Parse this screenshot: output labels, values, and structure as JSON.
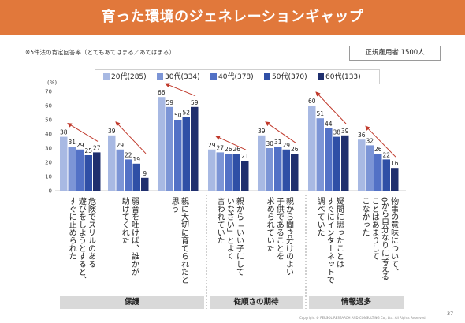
{
  "title": "育った環境のジェネレーションギャップ",
  "note": "※5件法の肯定回答率（とてもあてはまる／あてはまる）",
  "sample_box": "正規雇用者  1500人",
  "copyright": "Copyright © PERSOL RESEARCH AND CONSULTING Co., Ltd. All Rights Reserved.",
  "page_number": "37",
  "chart_data": {
    "type": "bar",
    "ylabel": "(%)",
    "ylim": [
      0,
      70
    ],
    "yticks": [
      0,
      10,
      20,
      30,
      40,
      50,
      60,
      70
    ],
    "grid": false,
    "legend_position": "top",
    "series": [
      {
        "name": "20代(285)",
        "color": "#a8b9e3",
        "values": [
          38,
          39,
          66,
          29,
          39,
          60,
          36
        ]
      },
      {
        "name": "30代(334)",
        "color": "#7c95d6",
        "values": [
          31,
          29,
          59,
          27,
          30,
          51,
          32
        ]
      },
      {
        "name": "40代(378)",
        "color": "#5271c6",
        "values": [
          29,
          22,
          50,
          26,
          31,
          44,
          26
        ]
      },
      {
        "name": "50代(370)",
        "color": "#2f4fa6",
        "values": [
          25,
          19,
          52,
          26,
          29,
          38,
          22
        ]
      },
      {
        "name": "60代(133)",
        "color": "#1f2f6e",
        "values": [
          27,
          9,
          59,
          21,
          26,
          39,
          16
        ]
      }
    ],
    "categories": [
      "危険でスリルのある遊びをしようとすると、すぐに止められた",
      "弱音を吐けば、誰かが助けてくれた",
      "親に大切に育てられたと思う",
      "親から「いい子にしていなさい」とよく言われていた",
      "親から聞き分けのよい子供であることを求められていた",
      "疑問に思ったことはすぐにインターネットで調べていた",
      "物事の意味について、0から自分なりに考えることはあまりしてこなかった"
    ],
    "category_lines": [
      [
        "危険でスリルのある",
        "遊びをしようとすると、",
        "すぐに止められた"
      ],
      [
        "弱音を吐けば、誰かが",
        "助けてくれた"
      ],
      [
        "親に大切に育てられたと",
        "思う"
      ],
      [
        "親から「いい子にして",
        "いなさい」とよく",
        "言われていた"
      ],
      [
        "親から聞き分けのよい",
        "子供であることを",
        "求められていた"
      ],
      [
        "疑問に思ったことは",
        "すぐにインターネットで",
        "調べていた"
      ],
      [
        "物事の意味について、",
        "0から自分なりに考える",
        "ことはあまりして",
        "こなかった"
      ]
    ],
    "groups": [
      {
        "label": "保護",
        "categories": [
          0,
          1,
          2
        ]
      },
      {
        "label": "従順さの期待",
        "categories": [
          3,
          4
        ]
      },
      {
        "label": "情報過多",
        "categories": [
          5,
          6
        ]
      }
    ]
  }
}
